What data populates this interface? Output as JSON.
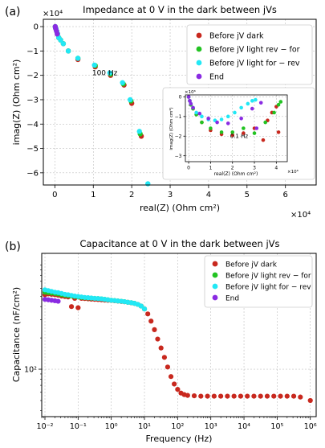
{
  "panel_labels": [
    "(a)",
    "(b)"
  ],
  "colors": {
    "before_dark": "#c8281e",
    "light_rev_for": "#22c322",
    "light_for_rev": "#22e8f5",
    "end": "#8a2be2"
  },
  "chart_data": [
    {
      "type": "scatter",
      "title": "Impedance at 0 V in the dark between jVs",
      "xlabel": "real(Z) (Ohm cm²)",
      "ylabel": "imag(Z) (Ohm cm²)",
      "x_multiplier": "×10⁴",
      "y_multiplier": "×10⁴",
      "xlim": [
        -0.3,
        6.8
      ],
      "ylim": [
        0.3,
        -6.5
      ],
      "xticks": [
        0,
        1,
        2,
        3,
        4,
        5,
        6
      ],
      "yticks": [
        0,
        -1,
        -2,
        -3,
        -4,
        -5,
        -6
      ],
      "legend_position": "upper-right",
      "annotations": [
        {
          "text": "100 Hz",
          "x": 1.3,
          "y": -2.0
        }
      ],
      "series": [
        {
          "name": "Before jV dark",
          "color_key": "before_dark",
          "x": [
            0.01,
            0.02,
            0.03,
            0.05,
            0.07,
            0.1,
            0.15,
            0.22,
            0.35,
            0.6,
            1.05,
            1.45,
            1.8,
            2.0,
            2.25
          ],
          "y": [
            0.0,
            -0.05,
            -0.1,
            -0.2,
            -0.3,
            -0.45,
            -0.55,
            -0.7,
            -1.0,
            -1.35,
            -1.65,
            -2.0,
            -2.4,
            -3.15,
            -4.5
          ]
        },
        {
          "name": "Before jV light rev − for",
          "color_key": "light_rev_for",
          "x": [
            0.01,
            0.02,
            0.03,
            0.05,
            0.07,
            0.1,
            0.15,
            0.22,
            0.35,
            0.6,
            1.05,
            1.45,
            1.78,
            1.98,
            2.22
          ],
          "y": [
            0.0,
            -0.05,
            -0.1,
            -0.2,
            -0.3,
            -0.45,
            -0.55,
            -0.7,
            -1.0,
            -1.3,
            -1.6,
            -1.95,
            -2.35,
            -3.05,
            -4.4
          ]
        },
        {
          "name": "Before jV light for − rev",
          "color_key": "light_for_rev",
          "x": [
            0.01,
            0.02,
            0.03,
            0.05,
            0.07,
            0.1,
            0.15,
            0.22,
            0.35,
            0.6,
            1.03,
            1.43,
            1.76,
            1.96,
            2.2,
            2.42
          ],
          "y": [
            0.0,
            -0.05,
            -0.1,
            -0.2,
            -0.3,
            -0.45,
            -0.55,
            -0.7,
            -1.0,
            -1.3,
            -1.58,
            -1.9,
            -2.3,
            -3.0,
            -4.3,
            -6.45
          ]
        },
        {
          "name": "End",
          "color_key": "end",
          "x": [
            0.01,
            0.02,
            0.04,
            0.06
          ],
          "y": [
            0.0,
            -0.08,
            -0.18,
            -0.3
          ]
        }
      ]
    },
    {
      "type": "scatter",
      "inset": true,
      "xlabel": "real(Z) (Ohm cm²)",
      "ylabel": "imag(Z) (Ohm cm²)",
      "x_multiplier": "×10⁶",
      "y_multiplier": "×10⁶",
      "xlim": [
        -0.15,
        4.5
      ],
      "ylim": [
        0.1,
        -3.3
      ],
      "xticks": [
        0,
        1,
        2,
        3,
        4
      ],
      "yticks": [
        0,
        -1,
        -2,
        -3
      ],
      "annotations": [
        {
          "text": "0.1 Hz",
          "x": 2.3,
          "y": -2.1
        }
      ],
      "series": [
        {
          "name": "Before jV dark",
          "color_key": "before_dark",
          "x": [
            0.0,
            0.05,
            0.1,
            0.2,
            0.35,
            0.6,
            1.0,
            1.5,
            2.0,
            2.5,
            3.0,
            3.4,
            3.6,
            3.8,
            4.0,
            4.1
          ],
          "y": [
            0.0,
            -0.2,
            -0.4,
            -0.6,
            -0.9,
            -1.3,
            -1.7,
            -1.9,
            -1.95,
            -1.85,
            -1.6,
            -2.2,
            -1.2,
            -0.8,
            -0.5,
            -1.8
          ]
        },
        {
          "name": "Before jV light rev − for",
          "color_key": "light_rev_for",
          "x": [
            0.0,
            0.05,
            0.1,
            0.2,
            0.35,
            0.6,
            1.0,
            1.5,
            2.0,
            2.5,
            3.0,
            3.5,
            3.9,
            4.1,
            4.2
          ],
          "y": [
            0.0,
            -0.2,
            -0.4,
            -0.6,
            -0.9,
            -1.3,
            -1.6,
            -1.8,
            -1.8,
            -1.6,
            -1.85,
            -1.3,
            -0.8,
            -0.4,
            -0.25
          ]
        },
        {
          "name": "Before jV light for − rev",
          "color_key": "light_for_rev",
          "x": [
            0.0,
            0.05,
            0.1,
            0.2,
            0.35,
            0.6,
            0.9,
            1.2,
            1.5,
            1.8,
            2.1,
            2.4,
            2.7,
            2.9,
            3.05
          ],
          "y": [
            0.0,
            -0.2,
            -0.35,
            -0.55,
            -0.8,
            -1.0,
            -1.15,
            -1.2,
            -1.15,
            -1.0,
            -0.8,
            -0.55,
            -0.35,
            -0.2,
            -0.15
          ]
        },
        {
          "name": "End",
          "color_key": "end",
          "x": [
            0.0,
            0.05,
            0.1,
            0.2,
            0.5,
            0.9,
            1.3,
            1.8,
            2.4,
            2.9,
            3.1,
            3.3
          ],
          "y": [
            0.0,
            -0.2,
            -0.35,
            -0.55,
            -0.85,
            -1.1,
            -1.3,
            -1.35,
            -1.1,
            -0.6,
            -1.6,
            -0.3
          ]
        }
      ]
    },
    {
      "type": "scatter",
      "title": "Capacitance at 0 V in the dark between jVs",
      "xlabel": "Frequency (Hz)",
      "ylabel": "Capacitance (nF/cm²)",
      "x_scale": "log",
      "y_scale": "log",
      "xlim": [
        0.008,
        1500000.0
      ],
      "ylim": [
        35,
        1300
      ],
      "xticks": [
        0.01,
        0.1,
        1,
        10,
        100,
        1000,
        10000,
        100000,
        1000000
      ],
      "xtick_labels": [
        "10⁻²",
        "10⁻¹",
        "10⁰",
        "10¹",
        "10²",
        "10³",
        "10⁴",
        "10⁵",
        "10⁶"
      ],
      "yticks": [
        100
      ],
      "ytick_labels": [
        "10²"
      ],
      "legend_position": "upper-right",
      "series": [
        {
          "name": "Before jV dark",
          "color_key": "before_dark",
          "x": [
            0.01,
            0.0126,
            0.0158,
            0.02,
            0.025,
            0.0316,
            0.04,
            0.05,
            0.063,
            0.079,
            0.1,
            0.126,
            0.158,
            0.2,
            0.25,
            0.316,
            0.4,
            0.5,
            0.63,
            0.79,
            1,
            1.26,
            1.58,
            2,
            2.5,
            3.16,
            4,
            5,
            6.3,
            7.9,
            10,
            12.6,
            15.8,
            20,
            25,
            31.6,
            40,
            50,
            63,
            79,
            100,
            126,
            158,
            200,
            316,
            501,
            794,
            1259,
            1995,
            3162,
            5012,
            7943,
            12589,
            19953,
            31623,
            50119,
            79433,
            125893,
            199526,
            316228,
            501187,
            1000000
          ],
          "y": [
            520,
            530,
            525,
            520,
            515,
            505,
            500,
            495,
            400,
            480,
            390,
            480,
            478,
            475,
            472,
            470,
            468,
            465,
            462,
            460,
            458,
            455,
            452,
            448,
            445,
            440,
            435,
            430,
            420,
            405,
            380,
            340,
            290,
            240,
            195,
            160,
            130,
            105,
            85,
            72,
            64,
            59,
            57,
            56,
            55.5,
            55,
            55,
            55,
            55,
            55,
            55,
            55,
            55,
            55,
            55,
            55,
            55,
            55,
            55,
            55,
            54,
            50
          ]
        },
        {
          "name": "Before jV light rev − for",
          "color_key": "light_rev_for",
          "x": [
            0.01,
            0.0126,
            0.0158,
            0.02,
            0.025,
            0.0316,
            0.04,
            0.05,
            0.063,
            0.079,
            0.1,
            0.126,
            0.158,
            0.2,
            0.25,
            0.316,
            0.4,
            0.5,
            0.63,
            0.79,
            1,
            1.26,
            1.58,
            2,
            2.5,
            3.16,
            4,
            5,
            6.3,
            7.9,
            10
          ],
          "y": [
            550,
            545,
            540,
            535,
            530,
            520,
            515,
            510,
            505,
            500,
            495,
            490,
            487,
            485,
            482,
            480,
            478,
            475,
            470,
            465,
            460,
            457,
            453,
            450,
            446,
            440,
            436,
            430,
            420,
            405,
            380
          ]
        },
        {
          "name": "Before jV light for − rev",
          "color_key": "light_for_rev",
          "x": [
            0.01,
            0.0126,
            0.0158,
            0.02,
            0.025,
            0.0316,
            0.04,
            0.05,
            0.063,
            0.079,
            0.1,
            0.126,
            0.158,
            0.2,
            0.25,
            0.316,
            0.4,
            0.5,
            0.63,
            0.79,
            1,
            1.26,
            1.58,
            2,
            2.5,
            3.16,
            4,
            5,
            6.3,
            7.9,
            10
          ],
          "y": [
            580,
            570,
            560,
            550,
            545,
            535,
            525,
            520,
            512,
            505,
            500,
            495,
            490,
            487,
            484,
            480,
            478,
            475,
            470,
            465,
            460,
            457,
            453,
            450,
            446,
            440,
            436,
            430,
            420,
            405,
            380
          ]
        },
        {
          "name": "End",
          "color_key": "end",
          "x": [
            0.01,
            0.0126,
            0.0158,
            0.02,
            0.025
          ],
          "y": [
            470,
            465,
            460,
            455,
            450
          ]
        }
      ]
    }
  ]
}
